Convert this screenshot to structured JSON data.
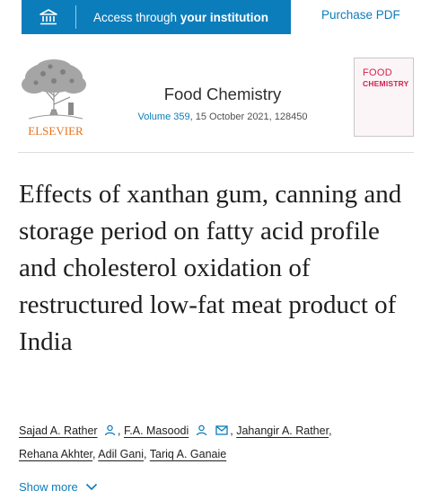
{
  "topbar": {
    "access_prefix": "Access through ",
    "access_bold": "your institution",
    "purchase": "Purchase PDF",
    "accent": "#0c7dbb"
  },
  "journal": {
    "publisher": "ELSEVIER",
    "name": "Food Chemistry",
    "volume": "Volume 359",
    "issue_rest": ", 15 October 2021, 128450",
    "cover_line1": "FOOD",
    "cover_line2": "CHEMISTRY"
  },
  "article": {
    "title": "Effects of xanthan gum, canning and storage period on fatty acid profile and cholesterol oxidation of restructured low-fat meat product of India"
  },
  "authors": [
    {
      "name": "Sajad A. Rather",
      "sep": ","
    },
    {
      "name": "F.A. Masoodi",
      "sep": ","
    },
    {
      "name": "Jahangir A. Rather",
      "sep": ","
    },
    {
      "name": "Rehana Akhter",
      "sep": ","
    },
    {
      "name": "Adil Gani",
      "sep": ","
    },
    {
      "name": "Tariq A. Ganaie",
      "sep": ""
    }
  ],
  "show_more": "Show more",
  "icons": {
    "institution": "institution-icon",
    "person": "person-icon",
    "mail": "mail-icon",
    "chevron": "chevron-down-icon"
  }
}
